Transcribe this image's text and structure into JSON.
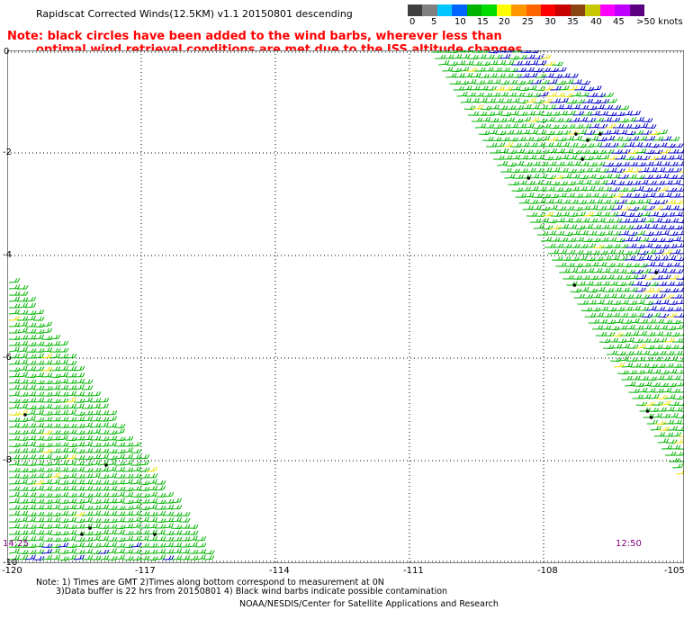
{
  "header": {
    "title": "Rapidscat Corrected Winds(12.5KM) v1.1 20150801 descending"
  },
  "legend": {
    "labels": [
      "0",
      "5",
      "10",
      "15",
      "20",
      "25",
      "30",
      "35",
      "40",
      "45",
      ">50 knots"
    ],
    "colors": [
      "#404040",
      "#808080",
      "#00c8ff",
      "#0064ff",
      "#00b400",
      "#00dc00",
      "#ffff00",
      "#ff9600",
      "#ff6400",
      "#ff0000",
      "#c80000",
      "#8b4513",
      "#c8c800",
      "#ff00ff",
      "#c000ff",
      "#5a0080"
    ]
  },
  "notes": {
    "line1": "Note: black circles have been added to the wind barbs, wherever less than",
    "line2": "optimal wind retrieval conditions are met due to the ISS altitude changes."
  },
  "map": {
    "lat_labels": [
      "0",
      "-2",
      "-4",
      "-6",
      "-8",
      "-10"
    ],
    "lon_labels": [
      "-120",
      "-117",
      "-114",
      "-111",
      "-108",
      "-105"
    ],
    "time_left": "14:25",
    "time_right": "12:50"
  },
  "footer": {
    "line1": "Note: 1) Times are GMT 2)Times along bottom correspond to measurement at 0N",
    "line2": "3)Data buffer is 22 hrs from 20150801 4) Black wind barbs indicate possible contamination",
    "line3": "NOAA/NESDIS/Center for Satellite Applications and Research"
  }
}
